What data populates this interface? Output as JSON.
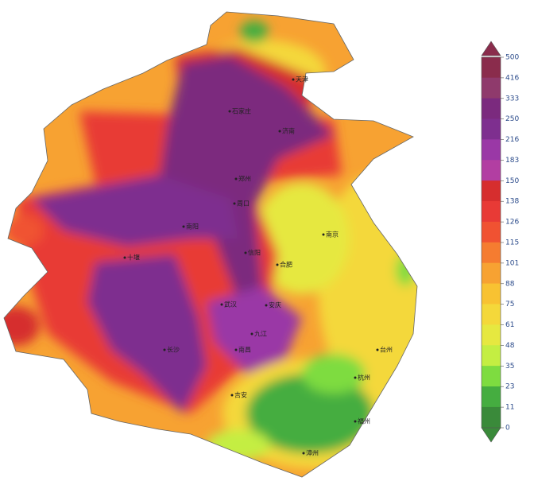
{
  "legend": {
    "ticks": [
      500,
      416,
      333,
      250,
      216,
      183,
      150,
      138,
      126,
      115,
      101,
      88,
      75,
      61,
      48,
      35,
      23,
      11,
      0
    ],
    "colors": [
      "#8a2c4c",
      "#8f3a6c",
      "#7b2a7e",
      "#7e2f8f",
      "#9a38a6",
      "#b23ea2",
      "#d62e2e",
      "#e83a36",
      "#f05232",
      "#f57c30",
      "#f7a232",
      "#f8c232",
      "#f4d83a",
      "#e6e840",
      "#c4ee42",
      "#7edc40",
      "#45ad40",
      "#3a8a3a"
    ]
  },
  "places": [
    "天津",
    "石家庄",
    "济南",
    "郑州",
    "周口",
    "信阳",
    "南阳",
    "十堰",
    "武汉",
    "安庆",
    "合肥",
    "南京",
    "杭州",
    "九江",
    "南昌",
    "吉安",
    "长沙",
    "福州",
    "漳州",
    "台州"
  ]
}
